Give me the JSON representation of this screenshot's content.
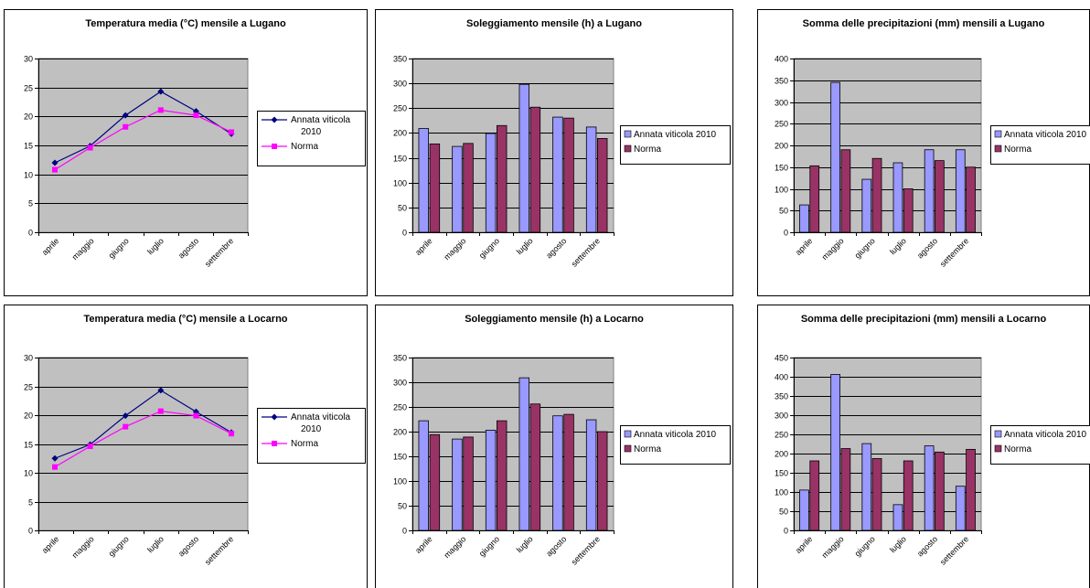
{
  "colors": {
    "plot_bg": "#c0c0c0",
    "annata_bar": "#9999ff",
    "norma_bar": "#993366",
    "annata_line": "#000080",
    "norma_line": "#ff00ff"
  },
  "chart_data": [
    {
      "type": "line",
      "title": "Temperatura media (°C) mensile a Lugano",
      "categories": [
        "aprile",
        "maggio",
        "giugno",
        "luglio",
        "agosto",
        "settembre"
      ],
      "ylim": [
        0,
        30
      ],
      "ytick_step": 5,
      "series": [
        {
          "name": "Annata viticola 2010",
          "values": [
            12,
            14.9,
            20.2,
            24.3,
            20.9,
            17
          ]
        },
        {
          "name": "Norma",
          "values": [
            10.8,
            14.6,
            18.2,
            21.1,
            20.2,
            17.3
          ]
        }
      ],
      "legend": "right"
    },
    {
      "type": "bar",
      "title": "Soleggiamento mensile (h) a Lugano",
      "categories": [
        "aprile",
        "maggio",
        "giugno",
        "luglio",
        "agosto",
        "settembre"
      ],
      "ylim": [
        0,
        350
      ],
      "ytick_step": 50,
      "series": [
        {
          "name": "Annata viticola 2010",
          "values": [
            209,
            173,
            199,
            298,
            232,
            212
          ]
        },
        {
          "name": "Norma",
          "values": [
            178,
            179,
            215,
            252,
            230,
            189
          ]
        }
      ],
      "legend": "right"
    },
    {
      "type": "bar",
      "title": "Somma delle precipitazioni (mm) mensili a Lugano",
      "categories": [
        "aprile",
        "maggio",
        "giugno",
        "luglio",
        "agosto",
        "settembre"
      ],
      "ylim": [
        0,
        400
      ],
      "ytick_step": 50,
      "series": [
        {
          "name": "Annata viticola 2010",
          "values": [
            63,
            345,
            122,
            160,
            190,
            190
          ]
        },
        {
          "name": "Norma",
          "values": [
            153,
            190,
            170,
            100,
            165,
            150
          ]
        }
      ],
      "legend": "right"
    },
    {
      "type": "line",
      "title": "Temperatura media (°C) mensile a Locarno",
      "categories": [
        "aprile",
        "maggio",
        "giugno",
        "luglio",
        "agosto",
        "settembre"
      ],
      "ylim": [
        0,
        30
      ],
      "ytick_step": 5,
      "series": [
        {
          "name": "Annata viticola 2010",
          "values": [
            12.5,
            14.9,
            19.9,
            24.3,
            20.6,
            17
          ]
        },
        {
          "name": "Norma",
          "values": [
            11,
            14.6,
            18,
            20.7,
            19.9,
            16.8
          ]
        }
      ],
      "legend": "right"
    },
    {
      "type": "bar",
      "title": "Soleggiamento mensile (h) a Locarno",
      "categories": [
        "aprile",
        "maggio",
        "giugno",
        "luglio",
        "agosto",
        "settembre"
      ],
      "ylim": [
        0,
        350
      ],
      "ytick_step": 50,
      "series": [
        {
          "name": "Annata viticola 2010",
          "values": [
            222,
            185,
            203,
            309,
            232,
            224
          ]
        },
        {
          "name": "Norma",
          "values": [
            194,
            189,
            222,
            256,
            235,
            200
          ]
        }
      ],
      "legend": "right"
    },
    {
      "type": "bar",
      "title": "Somma delle precipitazioni (mm) mensili a Locarno",
      "categories": [
        "aprile",
        "maggio",
        "giugno",
        "luglio",
        "agosto",
        "settembre"
      ],
      "ylim": [
        0,
        450
      ],
      "ytick_step": 50,
      "series": [
        {
          "name": "Annata viticola 2010",
          "values": [
            105,
            406,
            226,
            67,
            220,
            115
          ]
        },
        {
          "name": "Norma",
          "values": [
            181,
            213,
            187,
            181,
            204,
            211
          ]
        }
      ],
      "legend": "right"
    }
  ]
}
